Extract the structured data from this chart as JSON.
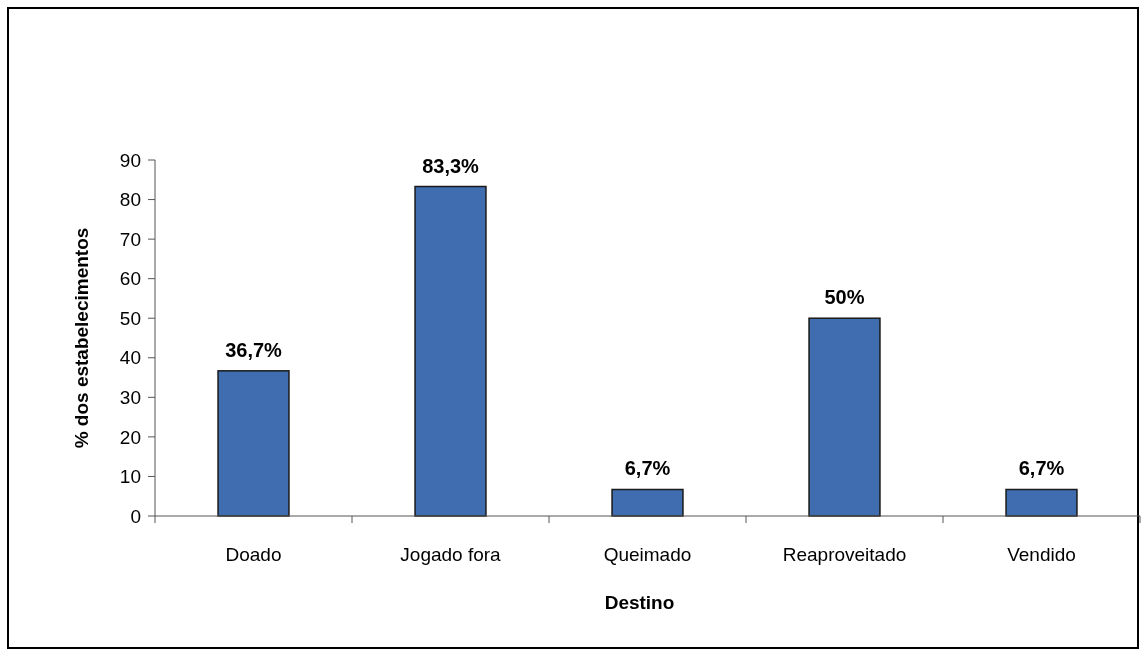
{
  "chart_data": {
    "type": "bar",
    "xlabel": "Destino",
    "ylabel": "% dos estabelecimentos",
    "categories": [
      "Doado",
      "Jogado fora",
      "Queimado",
      "Reaproveitado",
      "Vendido"
    ],
    "values": [
      36.7,
      83.3,
      6.7,
      50,
      6.7
    ],
    "value_labels": [
      "36,7%",
      "83,3%",
      "6,7%",
      "50%",
      "6,7%"
    ],
    "color": "#3f6db0",
    "ylim": [
      0,
      90
    ],
    "yticks": [
      0,
      10,
      20,
      30,
      40,
      50,
      60,
      70,
      80,
      90
    ]
  }
}
